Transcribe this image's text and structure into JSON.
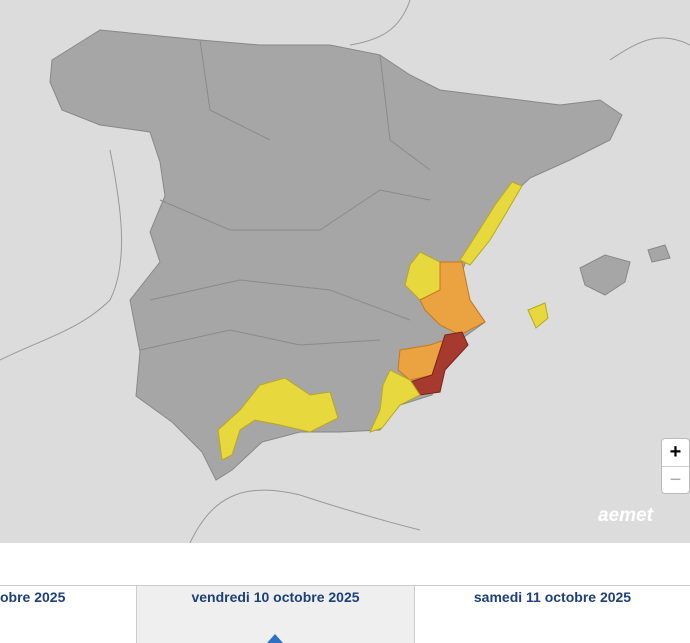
{
  "map": {
    "zoom_in": "+",
    "zoom_out": "−",
    "logo": "aemet"
  },
  "days": [
    "obre 2025",
    "vendredi 10 octobre 2025",
    "samedi 11 octobre 2025"
  ]
}
